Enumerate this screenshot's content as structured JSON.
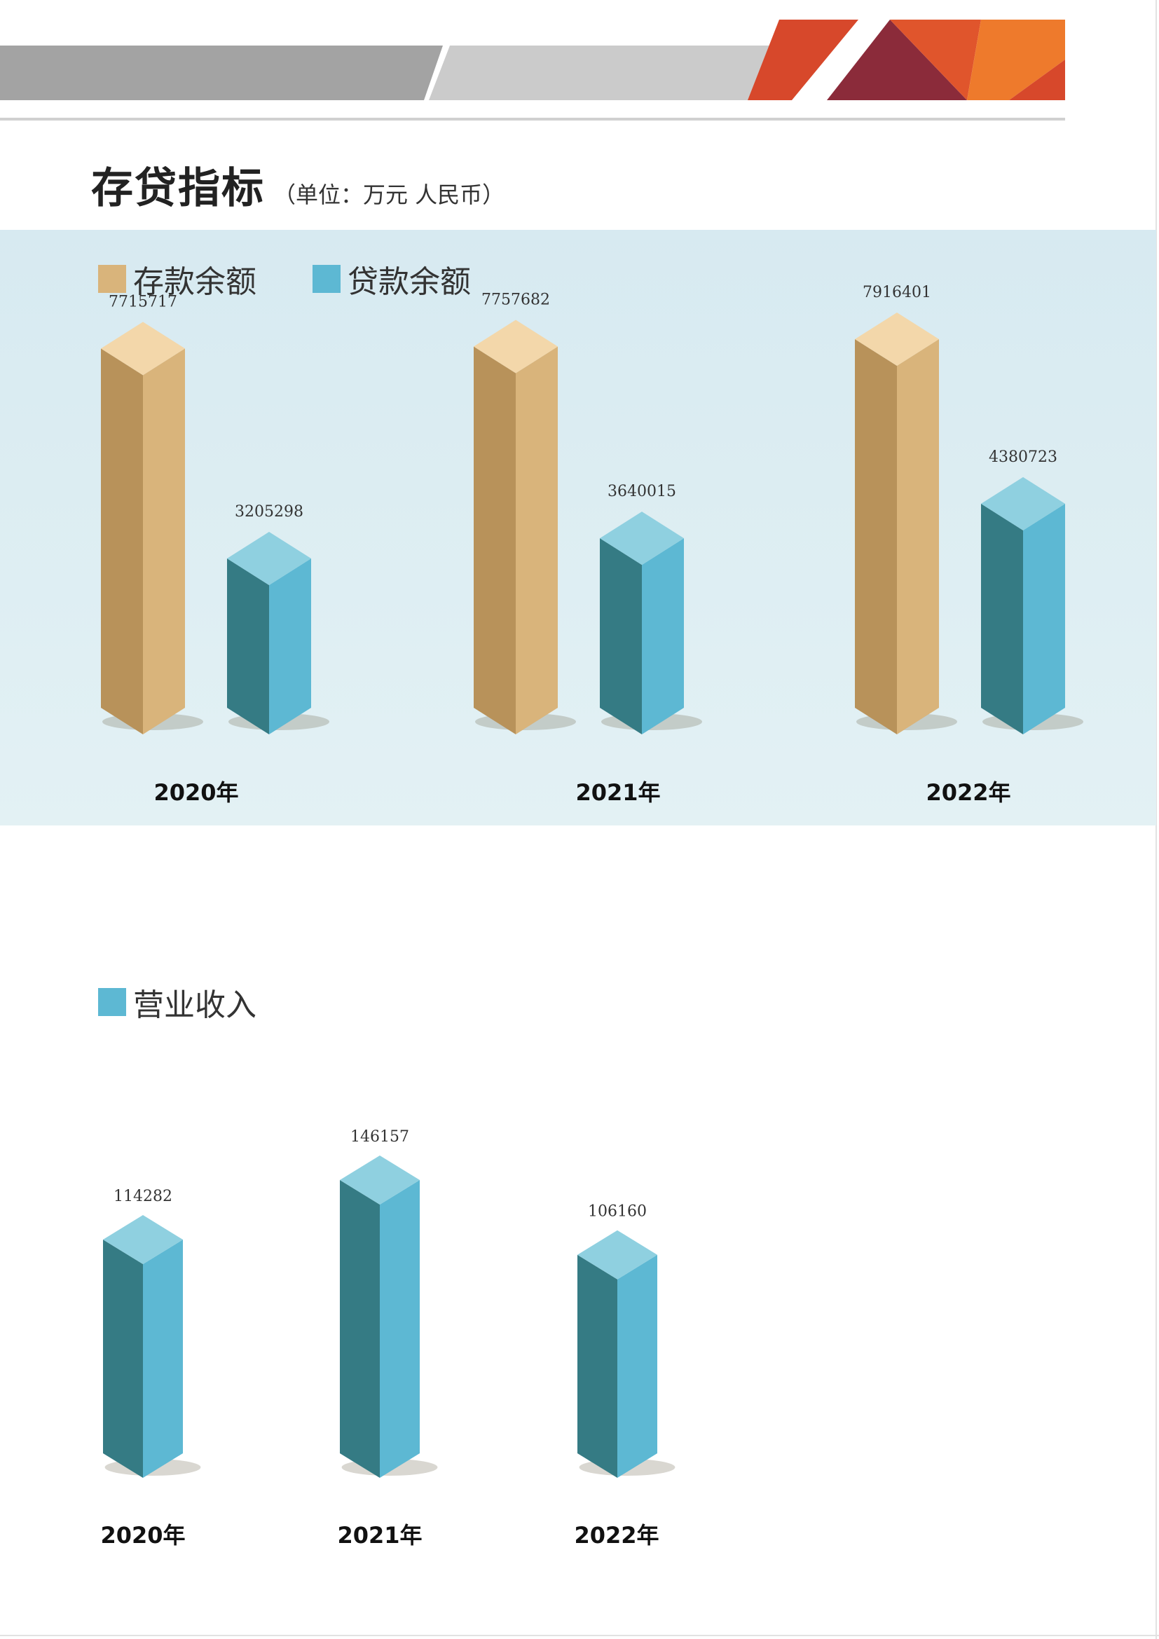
{
  "title": "存贷指标",
  "unit": "（单位：万元   人民币）",
  "chart_data": [
    {
      "type": "bar",
      "categories": [
        "2020年",
        "2021年",
        "2022年"
      ],
      "series": [
        {
          "name": "存款余额",
          "values": [
            7715717,
            7757682,
            7916401
          ]
        },
        {
          "name": "贷款余额",
          "values": [
            3205298,
            3640015,
            4380723
          ]
        }
      ],
      "ylim": [
        0,
        8000000
      ],
      "grid": false,
      "legend": "top-left"
    },
    {
      "type": "bar",
      "categories": [
        "2020年",
        "2021年",
        "2022年"
      ],
      "series": [
        {
          "name": "营业收入",
          "values": [
            114282,
            146157,
            106160
          ]
        }
      ],
      "ylim": [
        0,
        160000
      ],
      "grid": false,
      "legend": "top-left"
    }
  ],
  "colors": {
    "deposit_front": "#b8925a",
    "deposit_side": "#d9b47b",
    "deposit_top": "#f3d7aa",
    "loan_front": "#357b84",
    "loan_side": "#5db8d3",
    "loan_top": "#8fd0e0",
    "banner_dark": "#a3a3a3",
    "banner_light": "#cbcbcb",
    "banner_orange": "#d7482b",
    "banner_maroon": "#8b2b3a",
    "banner_amber": "#ee7a2c"
  }
}
